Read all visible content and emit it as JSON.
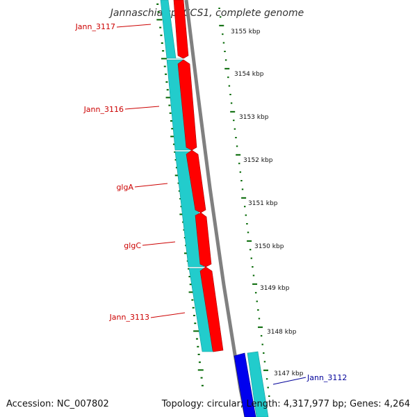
{
  "title": "Jannaschia sp. CCS1, complete genome",
  "footer": {
    "accession_label": "Accession:",
    "accession": "NC_007802",
    "topology_label": "Topology:",
    "topology": "circular",
    "length_label": "Length:",
    "length": "4,317,977 bp",
    "genes_label": "Genes:",
    "genes": "4,264"
  },
  "colors": {
    "reverse_cds": "#ff0000",
    "reverse_gene": "#22cccc",
    "forward_cds": "#0000ee",
    "forward_gene": "#22cccc",
    "backbone": "#808080",
    "tick": "#006600",
    "label_reverse": "#cc0000",
    "label_forward": "#000099"
  },
  "kbp_ticks": [
    "3155 kbp",
    "3154 kbp",
    "3153 kbp",
    "3152 kbp",
    "3151 kbp",
    "3150 kbp",
    "3149 kbp",
    "3148 kbp",
    "3147 kbp"
  ],
  "gene_labels": [
    {
      "name": "Jann_3117",
      "strand": "reverse"
    },
    {
      "name": "Jann_3116",
      "strand": "reverse"
    },
    {
      "name": "glgA",
      "strand": "reverse"
    },
    {
      "name": "glgC",
      "strand": "reverse"
    },
    {
      "name": "Jann_3113",
      "strand": "reverse"
    },
    {
      "name": "Jann_3112",
      "strand": "forward"
    }
  ]
}
